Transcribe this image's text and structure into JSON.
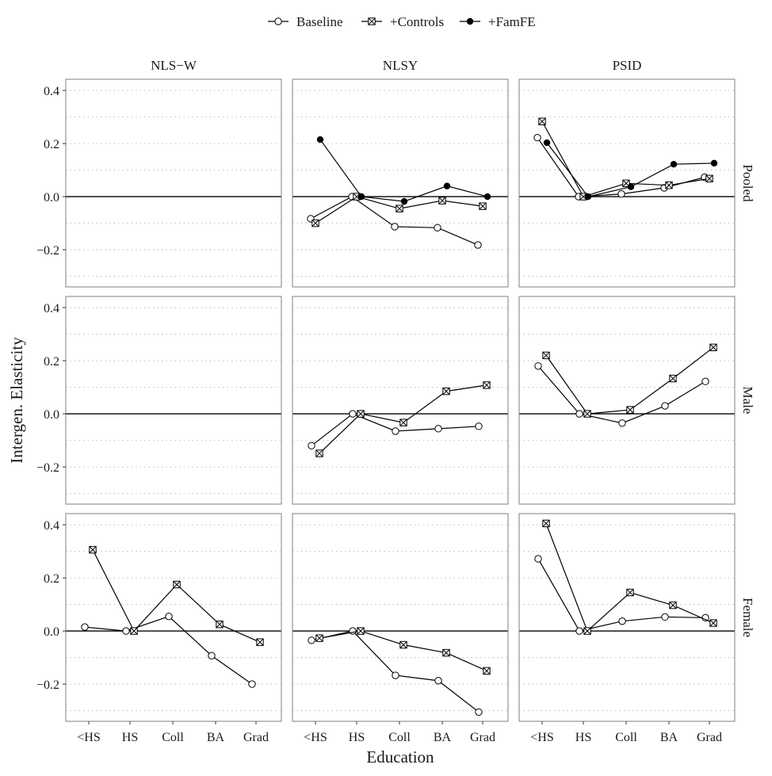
{
  "chart_data": {
    "type": "line",
    "layout": "facet-grid 3x3",
    "legend": {
      "placement": "top",
      "entries": [
        "Baseline",
        "+Controls",
        "+FamFE"
      ]
    },
    "series_markers": {
      "Baseline": "open-circle",
      "+Controls": "boxed-x",
      "+FamFE": "filled-circle"
    },
    "columns": [
      "NLS−W",
      "NLSY",
      "PSID"
    ],
    "rows": [
      "Pooled",
      "Male",
      "Female"
    ],
    "xlabel": "Education",
    "ylabel": "Intergen. Elasticity",
    "categories": [
      "<HS",
      "HS",
      "Coll",
      "BA",
      "Grad"
    ],
    "ylim": [
      -0.34,
      0.442
    ],
    "yticks": [
      -0.2,
      0.0,
      0.2,
      0.4
    ],
    "ytick_labels": [
      "−0.2",
      "0.0",
      "0.2",
      "0.4"
    ],
    "minor_grid": [
      -0.3,
      -0.1,
      0.1,
      0.3
    ],
    "grid": "dotted horizontal",
    "reference_line": 0,
    "panels": [
      {
        "row": "Pooled",
        "col": "NLS−W",
        "series": []
      },
      {
        "row": "Pooled",
        "col": "NLSY",
        "series": [
          {
            "name": "Baseline",
            "values": [
              -0.083,
              0.0,
              -0.113,
              -0.117,
              -0.182
            ]
          },
          {
            "name": "+Controls",
            "values": [
              -0.1,
              0.0,
              -0.045,
              -0.015,
              -0.036
            ]
          },
          {
            "name": "+FamFE",
            "values": [
              0.215,
              0.0,
              -0.018,
              0.04,
              0.0
            ]
          }
        ]
      },
      {
        "row": "Pooled",
        "col": "PSID",
        "series": [
          {
            "name": "Baseline",
            "values": [
              0.222,
              0.0,
              0.01,
              0.033,
              0.073
            ]
          },
          {
            "name": "+Controls",
            "values": [
              0.283,
              0.0,
              0.05,
              0.043,
              0.068
            ]
          },
          {
            "name": "+FamFE",
            "values": [
              0.203,
              0.0,
              0.037,
              0.122,
              0.126
            ]
          }
        ]
      },
      {
        "row": "Male",
        "col": "NLS−W",
        "series": []
      },
      {
        "row": "Male",
        "col": "NLSY",
        "series": [
          {
            "name": "Baseline",
            "values": [
              -0.12,
              0.0,
              -0.065,
              -0.056,
              -0.047
            ]
          },
          {
            "name": "+Controls",
            "values": [
              -0.149,
              0.0,
              -0.033,
              0.085,
              0.108
            ]
          }
        ]
      },
      {
        "row": "Male",
        "col": "PSID",
        "series": [
          {
            "name": "Baseline",
            "values": [
              0.18,
              0.0,
              -0.035,
              0.03,
              0.122
            ]
          },
          {
            "name": "+Controls",
            "values": [
              0.22,
              0.0,
              0.015,
              0.133,
              0.25
            ]
          }
        ]
      },
      {
        "row": "Female",
        "col": "NLS−W",
        "series": [
          {
            "name": "Baseline",
            "values": [
              0.015,
              0.0,
              0.055,
              -0.093,
              -0.2
            ]
          },
          {
            "name": "+Controls",
            "values": [
              0.306,
              0.0,
              0.175,
              0.025,
              -0.042
            ]
          }
        ]
      },
      {
        "row": "Female",
        "col": "NLSY",
        "series": [
          {
            "name": "Baseline",
            "values": [
              -0.035,
              0.0,
              -0.167,
              -0.187,
              -0.305
            ]
          },
          {
            "name": "+Controls",
            "values": [
              -0.027,
              0.0,
              -0.052,
              -0.082,
              -0.15
            ]
          }
        ]
      },
      {
        "row": "Female",
        "col": "PSID",
        "series": [
          {
            "name": "Baseline",
            "values": [
              0.272,
              0.0,
              0.037,
              0.053,
              0.05
            ]
          },
          {
            "name": "+Controls",
            "values": [
              0.405,
              0.0,
              0.145,
              0.097,
              0.03
            ]
          }
        ]
      }
    ]
  }
}
